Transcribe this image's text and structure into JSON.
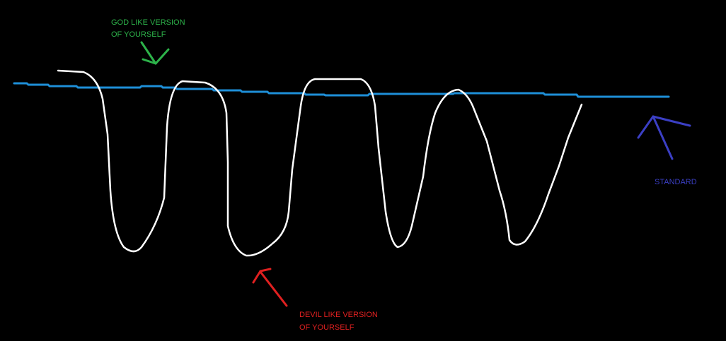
{
  "annotations": {
    "god": [
      "GOD LIKE VERSION",
      "OF YOURSELF"
    ],
    "devil": [
      "DEVIL LIKE VERSION",
      "OF YOURSELF"
    ],
    "standard": [
      "STANDARD"
    ]
  }
}
